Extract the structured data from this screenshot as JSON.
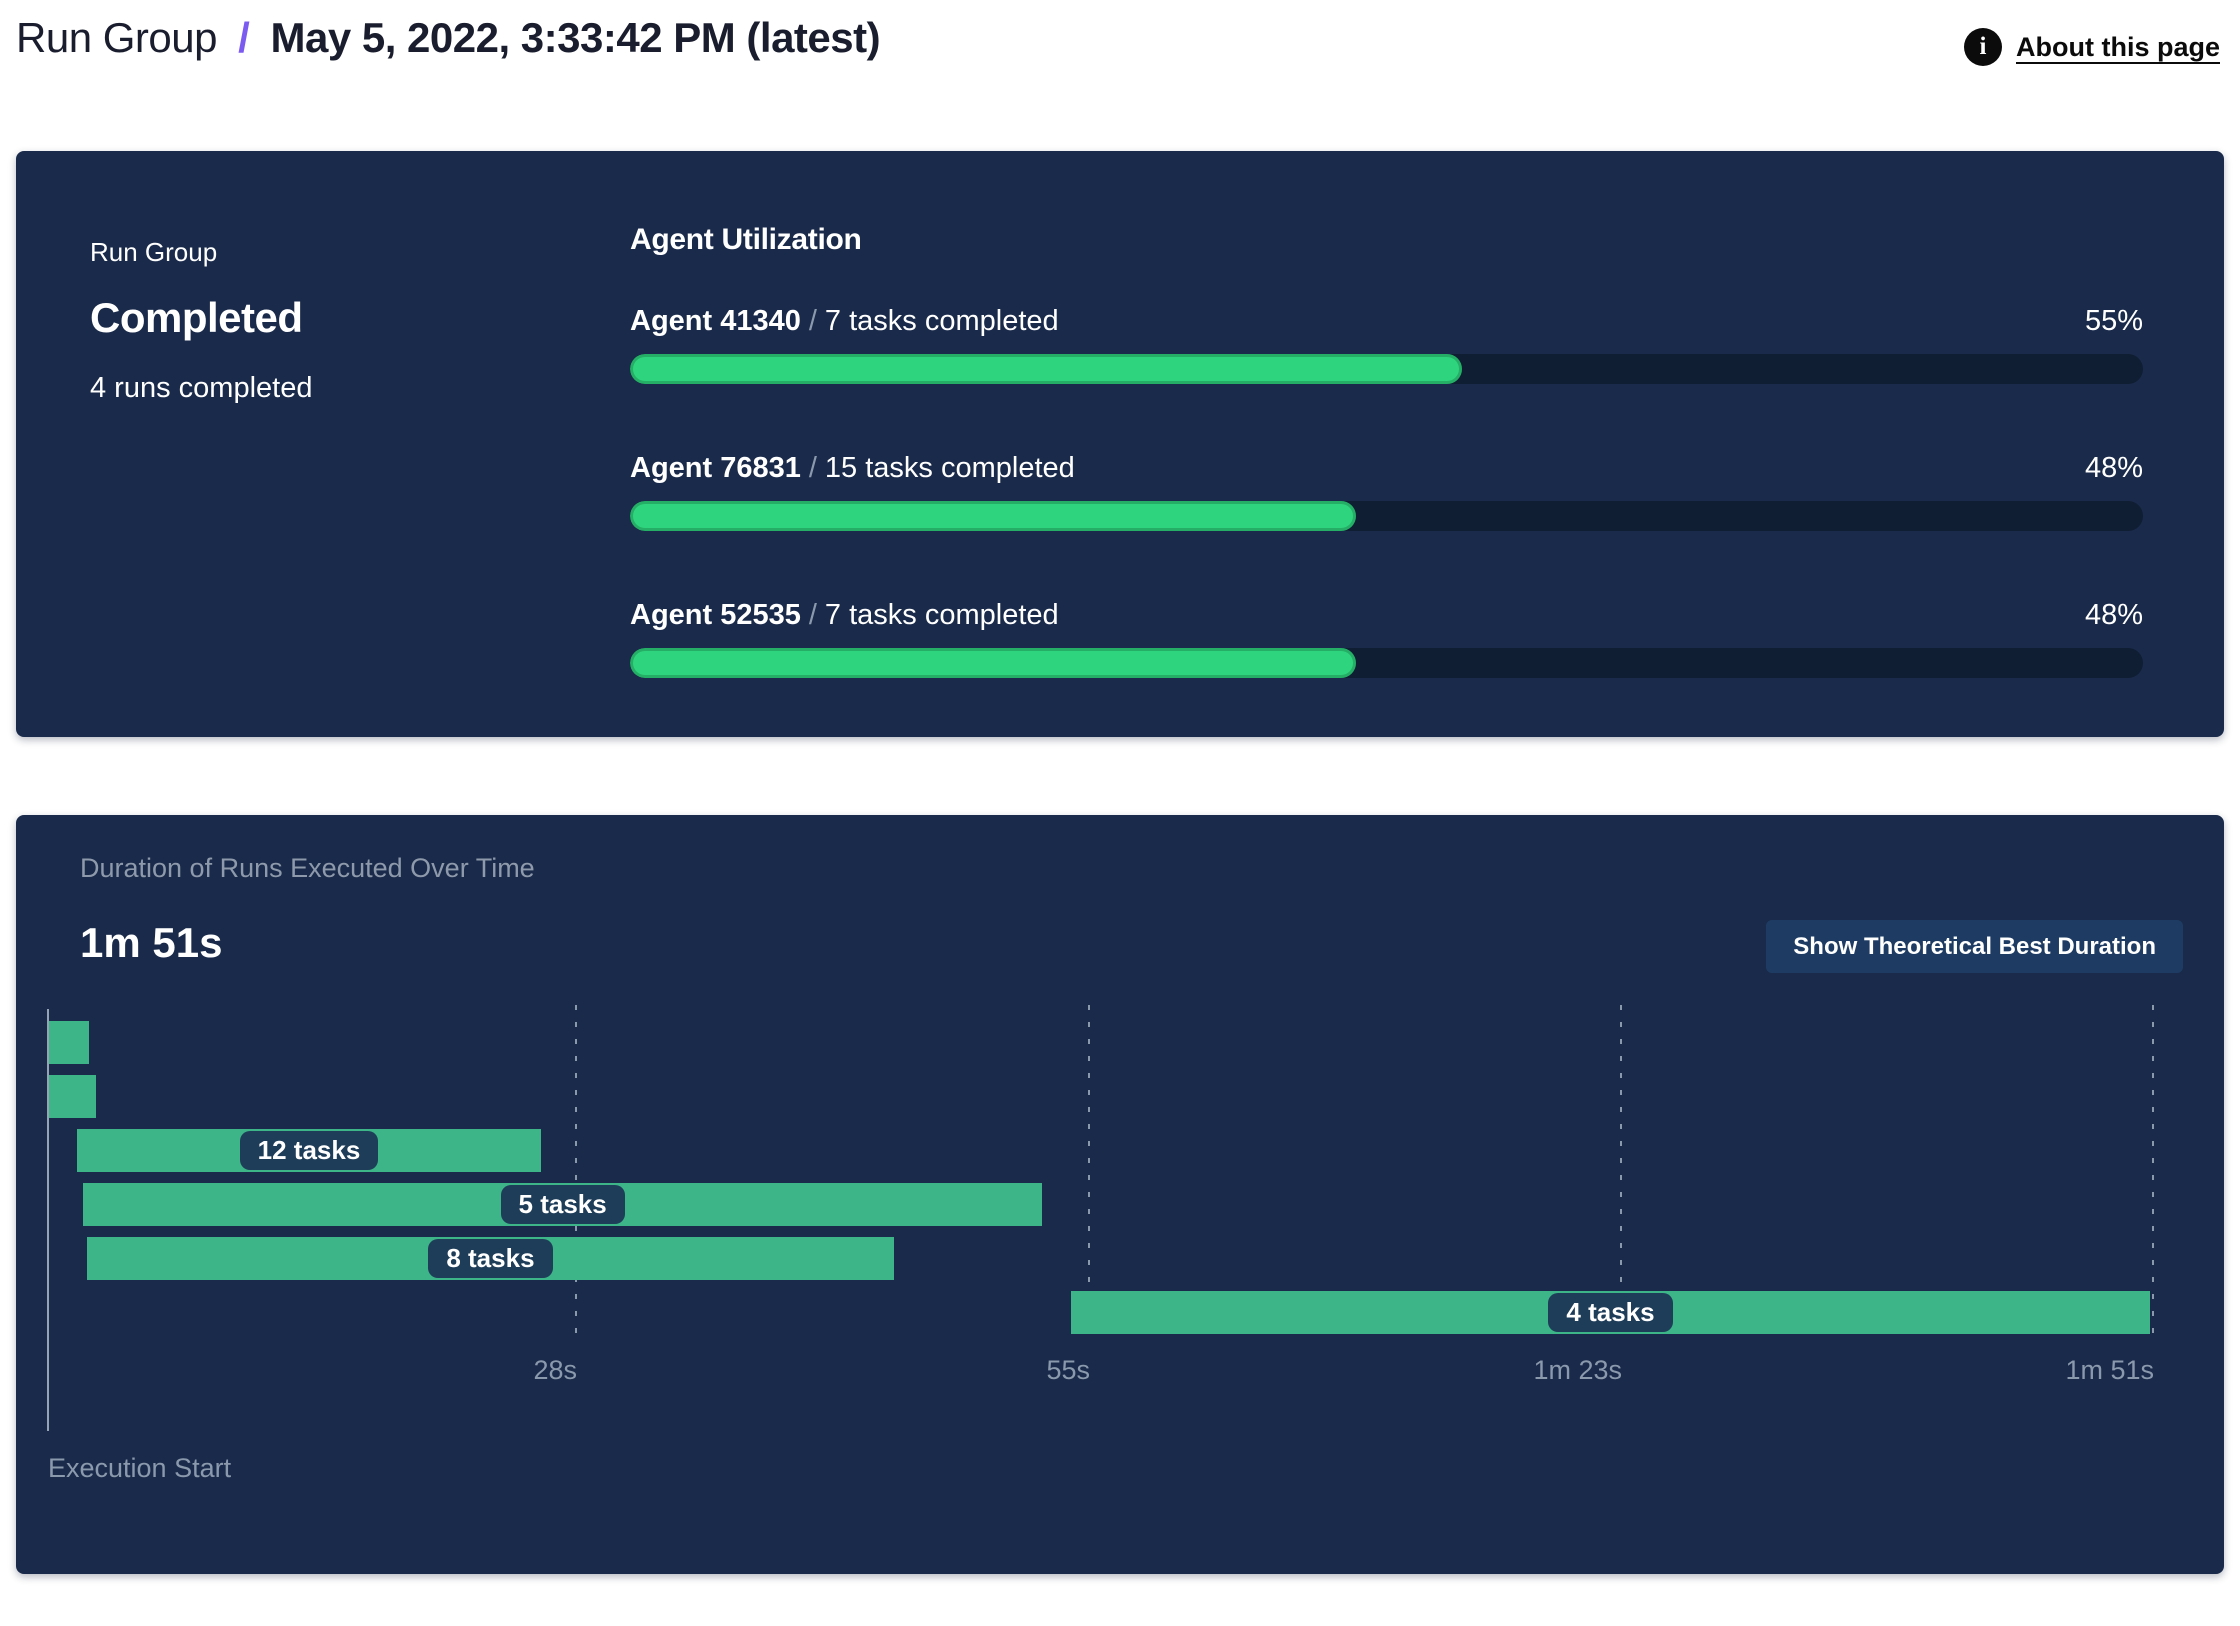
{
  "header": {
    "breadcrumb_root": "Run Group",
    "separator": "/",
    "title": "May 5, 2022, 3:33:42 PM (latest)",
    "about_link": "About this page",
    "info_icon_glyph": "i"
  },
  "colors": {
    "panel_navy": "#1a2a4a",
    "accent_purple": "#7c5cf0",
    "progress_green": "#2fd47e",
    "gantt_green": "#3eb489",
    "track_dark": "#101e33",
    "muted_text": "#8b99ad",
    "chip_navy": "#1e3d59",
    "button_navy": "#1e3c63"
  },
  "summary_panel": {
    "label": "Run Group",
    "status": "Completed",
    "runs_completed": "4 runs completed",
    "utilization": {
      "heading": "Agent Utilization",
      "agents": [
        {
          "name": "Agent 41340",
          "separator": "/",
          "tasks": "7 tasks completed",
          "percent": "55%",
          "value": 55
        },
        {
          "name": "Agent 76831",
          "separator": "/",
          "tasks": "15 tasks completed",
          "percent": "48%",
          "value": 48
        },
        {
          "name": "Agent 52535",
          "separator": "/",
          "tasks": "7 tasks completed",
          "percent": "48%",
          "value": 48
        }
      ]
    }
  },
  "duration_panel": {
    "title": "Duration of Runs Executed Over Time",
    "total_duration": "1m 51s",
    "button_label": "Show Theoretical Best Duration",
    "execution_start_label": "Execution Start"
  },
  "chart_data": {
    "type": "gantt",
    "title": "Duration of Runs Executed Over Time",
    "total_duration_label": "1m 51s",
    "x_unit": "seconds",
    "x_range": [
      0,
      111
    ],
    "x_ticks": [
      {
        "t": 28,
        "label": "28s"
      },
      {
        "t": 55,
        "label": "55s"
      },
      {
        "t": 83,
        "label": "1m 23s"
      },
      {
        "t": 111,
        "label": "1m 51s"
      }
    ],
    "bars": [
      {
        "row": 0,
        "start_s": 0.3,
        "end_s": 2.4,
        "label": ""
      },
      {
        "row": 1,
        "start_s": 0.3,
        "end_s": 2.8,
        "label": ""
      },
      {
        "row": 2,
        "start_s": 1.8,
        "end_s": 26.2,
        "label": "12 tasks"
      },
      {
        "row": 3,
        "start_s": 2.1,
        "end_s": 52.6,
        "label": "5 tasks"
      },
      {
        "row": 4,
        "start_s": 2.3,
        "end_s": 44.8,
        "label": "8 tasks"
      },
      {
        "row": 5,
        "start_s": 54.1,
        "end_s": 110.9,
        "label": "4 tasks"
      }
    ],
    "axis_label": "Execution Start"
  }
}
